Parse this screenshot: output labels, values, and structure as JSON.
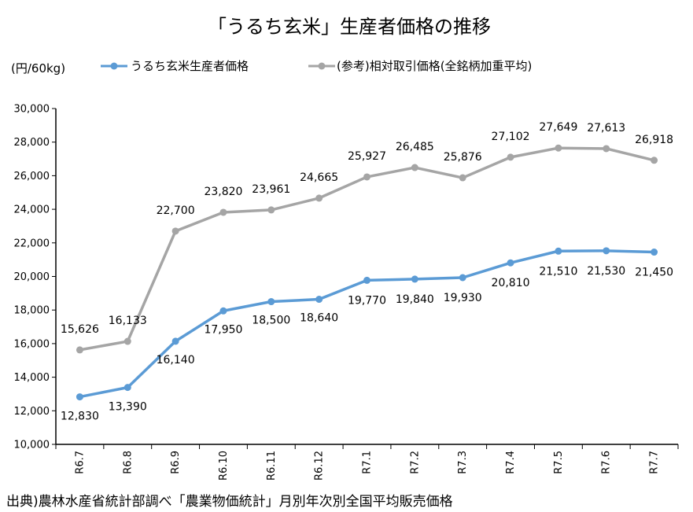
{
  "chart_data": {
    "type": "line",
    "title": "「うるち玄米」生産者価格の推移",
    "ylabel": "(円/60kg)",
    "categories": [
      "R6.7",
      "R6.8",
      "R6.9",
      "R6.10",
      "R6.11",
      "R6.12",
      "R7.1",
      "R7.2",
      "R7.3",
      "R7.4",
      "R7.5",
      "R7.6",
      "R7.7"
    ],
    "ylim": [
      10000,
      30000
    ],
    "yticks": [
      10000,
      12000,
      14000,
      16000,
      18000,
      20000,
      22000,
      24000,
      26000,
      28000,
      30000
    ],
    "ytick_labels": [
      "10,000",
      "12,000",
      "14,000",
      "16,000",
      "18,000",
      "20,000",
      "22,000",
      "24,000",
      "26,000",
      "28,000",
      "30,000"
    ],
    "grid": false,
    "legend_position": "top",
    "series": [
      {
        "name": "うるち玄米生産者価格",
        "color": "#5b9bd5",
        "values": [
          12830,
          13390,
          16140,
          17950,
          18500,
          18640,
          19770,
          19840,
          19930,
          20810,
          21510,
          21530,
          21450
        ],
        "labels": [
          "12,830",
          "13,390",
          "16,140",
          "17,950",
          "18,500",
          "18,640",
          "19,770",
          "19,840",
          "19,930",
          "20,810",
          "21,510",
          "21,530",
          "21,450"
        ]
      },
      {
        "name": "(参考)相対取引価格(全銘柄加重平均)",
        "color": "#a5a5a5",
        "values": [
          15626,
          16133,
          22700,
          23820,
          23961,
          24665,
          25927,
          26485,
          25876,
          27102,
          27649,
          27613,
          26918
        ],
        "labels": [
          "15,626",
          "16,133",
          "22,700",
          "23,820",
          "23,961",
          "24,665",
          "25,927",
          "26,485",
          "25,876",
          "27,102",
          "27,649",
          "27,613",
          "26,918"
        ]
      }
    ],
    "source": "出典)農林水産省統計部調べ「農業物価統計」月別年次別全国平均販売価格"
  }
}
